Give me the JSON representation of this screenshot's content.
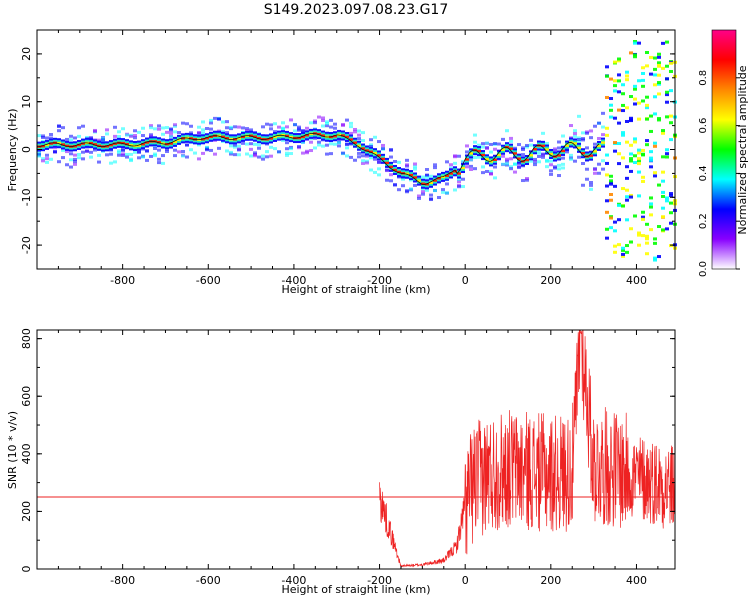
{
  "figure": {
    "title": "S149.2023.097.08.23.G17"
  },
  "chart_data": [
    {
      "type": "heatmap",
      "xlabel": "Height of straight line (km)",
      "ylabel": "Frequency (Hz)",
      "xlim": [
        -1000,
        490
      ],
      "ylim": [
        -25,
        25
      ],
      "x_ticks": [
        -800,
        -600,
        -400,
        -200,
        0,
        200,
        400
      ],
      "y_ticks": [
        -20,
        -10,
        0,
        10,
        20
      ],
      "colorbar": {
        "label": "Normalized spectral amplitude",
        "range": [
          0,
          1
        ],
        "ticks": [
          "0.0",
          "0.2",
          "0.4",
          "0.6",
          "0.8"
        ],
        "colormap": [
          "#ffffff",
          "#8800ff",
          "#0000ff",
          "#00ffff",
          "#00ff00",
          "#ffff00",
          "#ff8800",
          "#ff0000",
          "#ff0088"
        ]
      },
      "ridge_line": {
        "x": [
          -1000,
          -900,
          -800,
          -700,
          -620,
          -550,
          -450,
          -350,
          -300,
          -250,
          -200,
          -150,
          -100,
          -50,
          0,
          50,
          100,
          150,
          200,
          250,
          300,
          340
        ],
        "y": [
          1,
          1,
          1,
          1.5,
          2.5,
          2.5,
          2.5,
          3,
          3,
          1,
          -2,
          -5,
          -7,
          -6,
          -2,
          -1,
          -1,
          -1,
          0,
          0,
          0,
          0
        ]
      }
    },
    {
      "type": "line",
      "xlabel": "Height of straight line (km)",
      "ylabel": "SNR (10 * v/v)",
      "xlim": [
        -1000,
        490
      ],
      "ylim": [
        0,
        830
      ],
      "x_ticks": [
        -800,
        -600,
        -400,
        -200,
        0,
        200,
        400
      ],
      "y_ticks": [
        0,
        200,
        400,
        600,
        800
      ],
      "series": [
        {
          "color": "#ee2222",
          "x": [
            -1000,
            -200,
            -150,
            -100,
            -50,
            -20,
            0,
            20,
            50,
            100,
            150,
            200,
            250,
            270,
            300,
            350,
            400,
            450,
            490
          ],
          "y": [
            250,
            250,
            10,
            15,
            30,
            80,
            220,
            300,
            330,
            350,
            340,
            330,
            340,
            820,
            360,
            350,
            320,
            300,
            280
          ]
        }
      ],
      "reference_line": {
        "y": 250,
        "color": "#ee2222"
      }
    }
  ]
}
